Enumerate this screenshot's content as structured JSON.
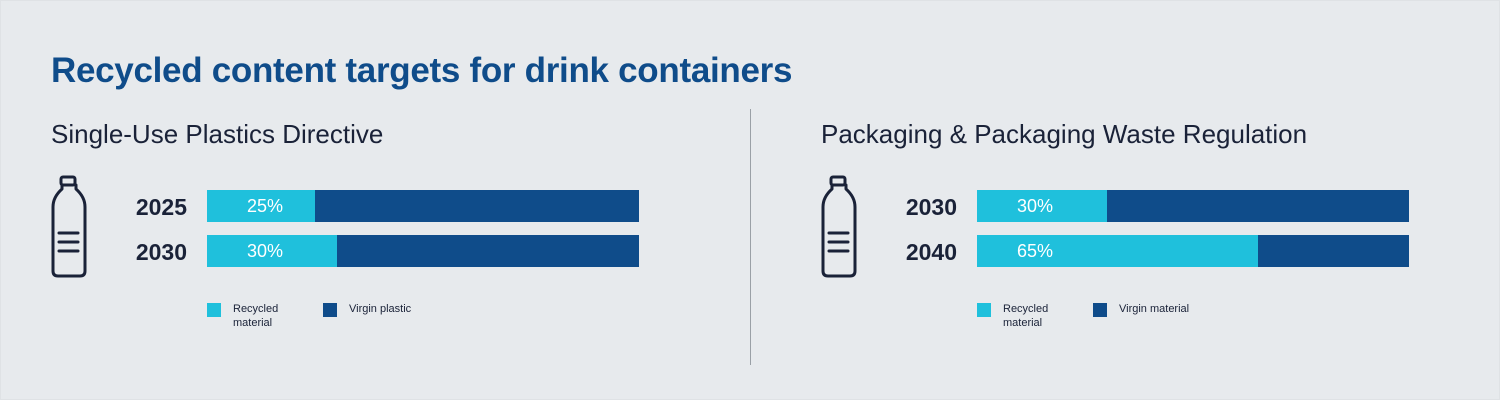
{
  "title": "Recycled content targets for drink containers",
  "colors": {
    "recycled": "#1fc0dc",
    "virgin": "#0f4c8a"
  },
  "icon": "bottle-icon",
  "chart_data": [
    {
      "type": "bar",
      "orientation": "horizontal-stacked",
      "title": "Single-Use Plastics Directive",
      "categories": [
        "2025",
        "2030"
      ],
      "series": [
        {
          "name": "Recycled material",
          "values": [
            25,
            30
          ],
          "labels": [
            "25%",
            "30%"
          ]
        },
        {
          "name": "Virgin plastic",
          "values": [
            75,
            70
          ]
        }
      ],
      "xlim": [
        0,
        100
      ]
    },
    {
      "type": "bar",
      "orientation": "horizontal-stacked",
      "title": "Packaging & Packaging Waste Regulation",
      "categories": [
        "2030",
        "2040"
      ],
      "series": [
        {
          "name": "Recycled material",
          "values": [
            30,
            65
          ],
          "labels": [
            "30%",
            "65%"
          ]
        },
        {
          "name": "Virgin material",
          "values": [
            70,
            35
          ]
        }
      ],
      "xlim": [
        0,
        100
      ]
    }
  ]
}
